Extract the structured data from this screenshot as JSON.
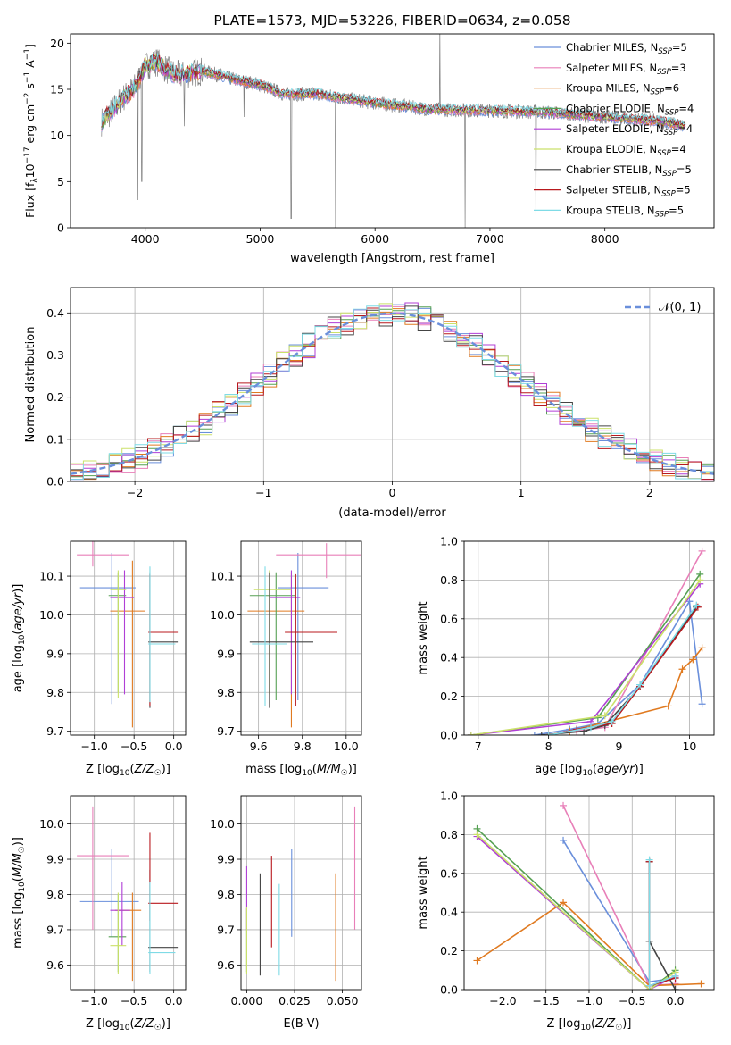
{
  "colors": {
    "series": [
      "#6a8fdb",
      "#e87fb8",
      "#e07a20",
      "#56a053",
      "#b03fd6",
      "#cbe16a",
      "#444444",
      "#b8191e",
      "#7fdbe6"
    ],
    "gauss": "#6a8fdb"
  },
  "chart_data": [
    {
      "id": "spectrum",
      "type": "line",
      "title": "PLATE=1573, MJD=53226, FIBERID=0634, z=0.058",
      "xlabel": "wavelength [Angstrom, rest frame]",
      "ylabel": "Flux [f_λ 10^-17 erg cm^-2 s^-1 A^-1]",
      "xlim": [
        3350,
        8950
      ],
      "ylim": [
        0,
        21
      ],
      "xticks": [
        4000,
        5000,
        6000,
        7000,
        8000
      ],
      "yticks": [
        0,
        5,
        10,
        15,
        20
      ],
      "grid": false,
      "legend_position": "top-right",
      "legend": [
        {
          "name": "Chabrier MILES",
          "nssp": "5"
        },
        {
          "name": "Salpeter MILES",
          "nssp": "3"
        },
        {
          "name": "Kroupa MILES",
          "nssp": "6"
        },
        {
          "name": "Chabrier ELODIE",
          "nssp": "4"
        },
        {
          "name": "Salpeter ELODIE",
          "nssp": "4"
        },
        {
          "name": "Kroupa ELODIE",
          "nssp": "4"
        },
        {
          "name": "Chabrier STELIB",
          "nssp": "5"
        },
        {
          "name": "Salpeter STELIB",
          "nssp": "5"
        },
        {
          "name": "Kroupa STELIB",
          "nssp": "5"
        }
      ],
      "continuum": [
        [
          3620,
          11.5
        ],
        [
          3700,
          12.5
        ],
        [
          3800,
          14
        ],
        [
          3900,
          15
        ],
        [
          4000,
          17.5
        ],
        [
          4100,
          18
        ],
        [
          4200,
          17
        ],
        [
          4300,
          16.5
        ],
        [
          4500,
          17
        ],
        [
          4800,
          16
        ],
        [
          5000,
          15.5
        ],
        [
          5200,
          14.5
        ],
        [
          5500,
          14.5
        ],
        [
          6000,
          13.5
        ],
        [
          6500,
          12.8
        ],
        [
          7000,
          12.7
        ],
        [
          7500,
          12.5
        ],
        [
          8000,
          12
        ],
        [
          8500,
          11.5
        ],
        [
          8700,
          11
        ]
      ]
    },
    {
      "id": "residuals",
      "type": "histogram",
      "xlabel": "(data-model)/error",
      "ylabel": "Normed distribution",
      "xlim": [
        -2.5,
        2.5
      ],
      "ylim": [
        0,
        0.46
      ],
      "xticks": [
        -2,
        -1,
        0,
        1,
        2
      ],
      "yticks": [
        0.0,
        0.1,
        0.2,
        0.3,
        0.4
      ],
      "grid": true,
      "legend_position": "top-right",
      "gauss_label": "𝒩(0, 1)",
      "bin_width": 0.1
    },
    {
      "id": "age-vs-Z",
      "type": "errorbar",
      "xlabel": "Z [log10(Z/Z☉)]",
      "ylabel": "age  [log10(age/yr)]",
      "xlim": [
        -1.3,
        0.15
      ],
      "ylim": [
        9.69,
        10.19
      ],
      "xticks": [
        -1.0,
        -0.5,
        0.0
      ],
      "yticks": [
        9.7,
        9.8,
        9.9,
        10.0,
        10.1
      ],
      "grid": true,
      "points": [
        {
          "x": -0.78,
          "xerr": [
            0.4,
            0.3
          ],
          "y": 10.07,
          "yerr": [
            0.3,
            0.09
          ]
        },
        {
          "x": -1.02,
          "xerr": [
            0.2,
            0.46
          ],
          "y": 10.155,
          "yerr": [
            0.03,
            0.07
          ]
        },
        {
          "x": -0.52,
          "xerr": [
            0.28,
            0.16
          ],
          "y": 10.01,
          "yerr": [
            0.3,
            0.13
          ]
        },
        {
          "x": -0.7,
          "xerr": [
            0.12,
            0.1
          ],
          "y": 10.05,
          "yerr": [
            0.25,
            0.06
          ]
        },
        {
          "x": -0.62,
          "xerr": [
            0.18,
            0.12
          ],
          "y": 10.045,
          "yerr": [
            0.25,
            0.07
          ]
        },
        {
          "x": -0.7,
          "xerr": [
            0.1,
            0.1
          ],
          "y": 10.065,
          "yerr": [
            0.28,
            0.05
          ]
        },
        {
          "x": -0.3,
          "xerr": [
            0.02,
            0.35
          ],
          "y": 9.93,
          "yerr": [
            0.17,
            0.18
          ]
        },
        {
          "x": -0.3,
          "xerr": [
            0.02,
            0.35
          ],
          "y": 9.955,
          "yerr": [
            0.19,
            0.15
          ]
        },
        {
          "x": -0.3,
          "xerr": [
            0.02,
            0.32
          ],
          "y": 9.925,
          "yerr": [
            0.15,
            0.2
          ]
        }
      ]
    },
    {
      "id": "age-vs-mass",
      "type": "errorbar",
      "xlabel": "mass [log10(M/M☉)]",
      "ylabel": "",
      "xlim": [
        9.52,
        10.07
      ],
      "ylim": [
        9.69,
        10.19
      ],
      "xticks": [
        9.6,
        9.8,
        10.0
      ],
      "yticks": [
        9.7,
        9.8,
        9.9,
        10.0,
        10.1
      ],
      "grid": true,
      "points": [
        {
          "x": 9.78,
          "xerr": [
            0.09,
            0.14
          ],
          "y": 10.07,
          "yerr": [
            0.29,
            0.09
          ]
        },
        {
          "x": 9.91,
          "xerr": [
            0.23,
            0.21
          ],
          "y": 10.155,
          "yerr": [
            0.06,
            0.03
          ]
        },
        {
          "x": 9.75,
          "xerr": [
            0.2,
            0.06
          ],
          "y": 10.01,
          "yerr": [
            0.3,
            0.1
          ]
        },
        {
          "x": 9.68,
          "xerr": [
            0.12,
            0.09
          ],
          "y": 10.05,
          "yerr": [
            0.27,
            0.06
          ]
        },
        {
          "x": 9.75,
          "xerr": [
            0.1,
            0.04
          ],
          "y": 10.045,
          "yerr": [
            0.25,
            0.07
          ]
        },
        {
          "x": 9.65,
          "xerr": [
            0.07,
            0.1
          ],
          "y": 10.065,
          "yerr": [
            0.27,
            0.05
          ]
        },
        {
          "x": 9.65,
          "xerr": [
            0.09,
            0.2
          ],
          "y": 9.93,
          "yerr": [
            0.17,
            0.18
          ]
        },
        {
          "x": 9.77,
          "xerr": [
            0.05,
            0.19
          ],
          "y": 9.955,
          "yerr": [
            0.19,
            0.15
          ]
        },
        {
          "x": 9.63,
          "xerr": [
            0.06,
            0.1
          ],
          "y": 9.925,
          "yerr": [
            0.16,
            0.2
          ]
        }
      ]
    },
    {
      "id": "massweight-vs-age",
      "type": "line",
      "xlabel": "age  [log10(age/yr)]",
      "ylabel": "mass weight",
      "xlim": [
        6.8,
        10.35
      ],
      "ylim": [
        0,
        1
      ],
      "xticks": [
        7,
        8,
        9,
        10
      ],
      "yticks": [
        0.0,
        0.2,
        0.4,
        0.6,
        0.8,
        1.0
      ],
      "grid": true,
      "series": [
        {
          "x": [
            7.8,
            8.3,
            8.7,
            9.3,
            10.0,
            10.18
          ],
          "y": [
            0.0,
            0.03,
            0.06,
            0.26,
            0.69,
            0.16
          ]
        },
        {
          "x": [
            8.4,
            8.8,
            10.18
          ],
          "y": [
            0.02,
            0.04,
            0.95
          ]
        },
        {
          "x": [
            8.3,
            9.7,
            9.9,
            10.05,
            10.18
          ],
          "y": [
            0.02,
            0.15,
            0.34,
            0.39,
            0.45
          ]
        },
        {
          "x": [
            6.9,
            8.7,
            10.15
          ],
          "y": [
            0.0,
            0.09,
            0.83
          ]
        },
        {
          "x": [
            6.9,
            8.6,
            10.15
          ],
          "y": [
            0.0,
            0.07,
            0.78
          ]
        },
        {
          "x": [
            6.9,
            8.8,
            10.15
          ],
          "y": [
            0.0,
            0.1,
            0.8
          ]
        },
        {
          "x": [
            7.9,
            8.5,
            8.8,
            9.3,
            10.1
          ],
          "y": [
            0.0,
            0.02,
            0.05,
            0.25,
            0.66
          ]
        },
        {
          "x": [
            8.0,
            8.4,
            8.9,
            9.3,
            10.12
          ],
          "y": [
            0.0,
            0.03,
            0.06,
            0.25,
            0.66
          ]
        },
        {
          "x": [
            8.0,
            8.6,
            8.9,
            9.3,
            10.1
          ],
          "y": [
            0.0,
            0.04,
            0.07,
            0.26,
            0.67
          ]
        }
      ]
    },
    {
      "id": "mass-vs-Z",
      "type": "errorbar",
      "xlabel": "Z [log10(Z/Z☉)]",
      "ylabel": "mass [log10(M/M☉)]",
      "xlim": [
        -1.3,
        0.15
      ],
      "ylim": [
        9.53,
        10.08
      ],
      "xticks": [
        -1.0,
        -0.5,
        0.0
      ],
      "yticks": [
        9.6,
        9.7,
        9.8,
        9.9,
        10.0
      ],
      "grid": true,
      "points": [
        {
          "x": -0.78,
          "xerr": [
            0.4,
            0.34
          ],
          "y": 9.78,
          "yerr": [
            0.1,
            0.15
          ]
        },
        {
          "x": -1.02,
          "xerr": [
            0.2,
            0.46
          ],
          "y": 9.91,
          "yerr": [
            0.21,
            0.14
          ]
        },
        {
          "x": -0.52,
          "xerr": [
            0.22,
            0.11
          ],
          "y": 9.755,
          "yerr": [
            0.2,
            0.05
          ]
        },
        {
          "x": -0.7,
          "xerr": [
            0.12,
            0.1
          ],
          "y": 9.68,
          "yerr": [
            0.1,
            0.12
          ]
        },
        {
          "x": -0.65,
          "xerr": [
            0.15,
            0.1
          ],
          "y": 9.755,
          "yerr": [
            0.1,
            0.08
          ]
        },
        {
          "x": -0.7,
          "xerr": [
            0.1,
            0.1
          ],
          "y": 9.655,
          "yerr": [
            0.08,
            0.15
          ]
        },
        {
          "x": -0.3,
          "xerr": [
            0.02,
            0.35
          ],
          "y": 9.65,
          "yerr": [
            0.07,
            0.22
          ]
        },
        {
          "x": -0.3,
          "xerr": [
            0.02,
            0.35
          ],
          "y": 9.775,
          "yerr": [
            0.05,
            0.2
          ]
        },
        {
          "x": -0.3,
          "xerr": [
            0.02,
            0.32
          ],
          "y": 9.635,
          "yerr": [
            0.06,
            0.2
          ]
        }
      ]
    },
    {
      "id": "mass-vs-ebv",
      "type": "errorbar",
      "xlabel": "E(B-V)",
      "ylabel": "",
      "xlim": [
        -0.003,
        0.06
      ],
      "ylim": [
        9.53,
        10.08
      ],
      "xticks": [
        0.0,
        0.025,
        0.05
      ],
      "yticks": [
        9.6,
        9.7,
        9.8,
        9.9,
        10.0
      ],
      "grid": true,
      "points": [
        {
          "x": 0.0235,
          "y": 9.78,
          "yerr": [
            0.1,
            0.15
          ]
        },
        {
          "x": 0.0565,
          "y": 9.91,
          "yerr": [
            0.21,
            0.14
          ]
        },
        {
          "x": 0.0465,
          "y": 9.755,
          "yerr": [
            0.2,
            0.105
          ]
        },
        {
          "x": 0.0,
          "y": 9.68,
          "yerr": [
            0.1,
            0.08
          ]
        },
        {
          "x": 0.0,
          "y": 9.8,
          "yerr": [
            0.1,
            0.08
          ]
        },
        {
          "x": 0.0,
          "y": 9.655,
          "yerr": [
            0.08,
            0.11
          ]
        },
        {
          "x": 0.007,
          "y": 9.7,
          "yerr": [
            0.13,
            0.16
          ]
        },
        {
          "x": 0.013,
          "y": 9.78,
          "yerr": [
            0.13,
            0.13
          ]
        },
        {
          "x": 0.017,
          "y": 9.7,
          "yerr": [
            0.13,
            0.13
          ]
        }
      ]
    },
    {
      "id": "massweight-vs-Z",
      "type": "line",
      "xlabel": "Z [log10(Z/Z☉)]",
      "ylabel": "mass weight",
      "xlim": [
        -2.45,
        0.45
      ],
      "ylim": [
        0,
        1
      ],
      "xticks": [
        -2.0,
        -1.5,
        -1.0,
        -0.5,
        0.0
      ],
      "yticks": [
        0.0,
        0.2,
        0.4,
        0.6,
        0.8,
        1.0
      ],
      "grid": true,
      "series": [
        {
          "x": [
            -1.3,
            -0.3,
            0.0
          ],
          "y": [
            0.77,
            0.04,
            0.06
          ]
        },
        {
          "x": [
            -1.3,
            -0.3,
            0.0
          ],
          "y": [
            0.95,
            0.02,
            0.03
          ]
        },
        {
          "x": [
            -2.3,
            -1.3,
            -0.3,
            0.3
          ],
          "y": [
            0.15,
            0.45,
            0.02,
            0.03
          ]
        },
        {
          "x": [
            -2.3,
            -0.3,
            0.0
          ],
          "y": [
            0.83,
            0.0,
            0.1
          ]
        },
        {
          "x": [
            -2.3,
            -0.3,
            0.0
          ],
          "y": [
            0.79,
            0.0,
            0.07
          ]
        },
        {
          "x": [
            -2.3,
            -0.3,
            0.0
          ],
          "y": [
            0.8,
            0.0,
            0.09
          ]
        },
        {
          "x": [
            -0.3,
            -0.3,
            0.0
          ],
          "y": [
            0.66,
            0.25,
            0.0
          ]
        },
        {
          "x": [
            -0.3,
            -0.3,
            0.0
          ],
          "y": [
            0.66,
            0.02,
            0.06
          ]
        },
        {
          "x": [
            -0.3,
            -0.3,
            0.0
          ],
          "y": [
            0.67,
            0.02,
            0.07
          ]
        }
      ]
    }
  ]
}
